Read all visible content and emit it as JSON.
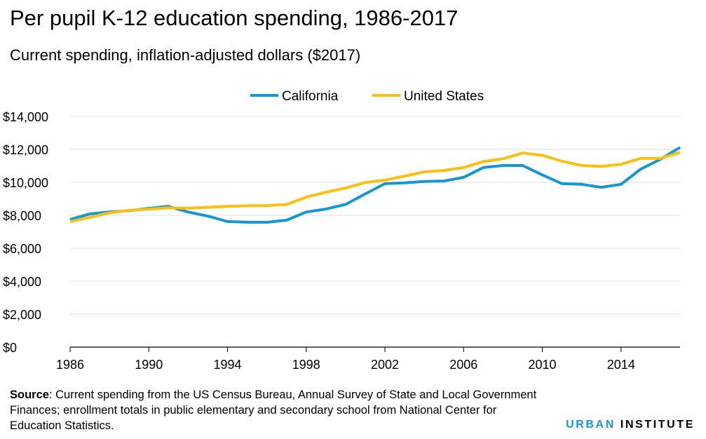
{
  "title": "Per pupil K-12 education spending, 1986-2017",
  "subtitle": "Current spending, inflation-adjusted dollars ($2017)",
  "source_label": "Source",
  "source_text": ": Current spending from the US Census Bureau, Annual Survey of State and Local Government Finances; enrollment totals in public elementary and secondary school from National Center for Education Statistics.",
  "brand": {
    "part1": "URBAN",
    "part2": "INSTITUTE",
    "color": "#1696d2"
  },
  "chart_data": {
    "type": "line",
    "title": "Per pupil K-12 education spending, 1986-2017",
    "xlabel": "",
    "ylabel": "",
    "xlim": [
      1986,
      2017
    ],
    "ylim": [
      0,
      14000
    ],
    "grid": true,
    "legend_position": "top-center",
    "x_ticks": [
      1986,
      1990,
      1994,
      1998,
      2002,
      2006,
      2010,
      2014
    ],
    "x_tick_labels": [
      "1986",
      "1990",
      "1994",
      "1998",
      "2002",
      "2006",
      "2010",
      "2014"
    ],
    "y_ticks": [
      0,
      2000,
      4000,
      6000,
      8000,
      10000,
      12000,
      14000
    ],
    "y_tick_labels": [
      "$0",
      "$2,000",
      "$4,000",
      "$6,000",
      "$8,000",
      "$10,000",
      "$12,000",
      "$14,000"
    ],
    "x": [
      1986,
      1987,
      1988,
      1989,
      1990,
      1991,
      1992,
      1993,
      1994,
      1995,
      1996,
      1997,
      1998,
      1999,
      2000,
      2001,
      2002,
      2003,
      2004,
      2005,
      2006,
      2007,
      2008,
      2009,
      2010,
      2011,
      2012,
      2013,
      2014,
      2015,
      2016,
      2017
    ],
    "series": [
      {
        "name": "California",
        "color": "#1696d2",
        "values": [
          7750,
          8080,
          8200,
          8280,
          8420,
          8540,
          8200,
          7950,
          7620,
          7580,
          7580,
          7700,
          8200,
          8380,
          8660,
          9300,
          9920,
          9970,
          10050,
          10080,
          10300,
          10900,
          11020,
          11020,
          10450,
          9920,
          9880,
          9700,
          9880,
          10800,
          11400,
          12120
        ]
      },
      {
        "name": "United States",
        "color": "#fdbf11",
        "values": [
          7620,
          7870,
          8150,
          8300,
          8380,
          8450,
          8430,
          8490,
          8540,
          8580,
          8590,
          8660,
          9100,
          9400,
          9650,
          9990,
          10130,
          10380,
          10640,
          10720,
          10900,
          11260,
          11430,
          11780,
          11640,
          11280,
          11020,
          10970,
          11100,
          11450,
          11450,
          11820
        ]
      }
    ]
  }
}
